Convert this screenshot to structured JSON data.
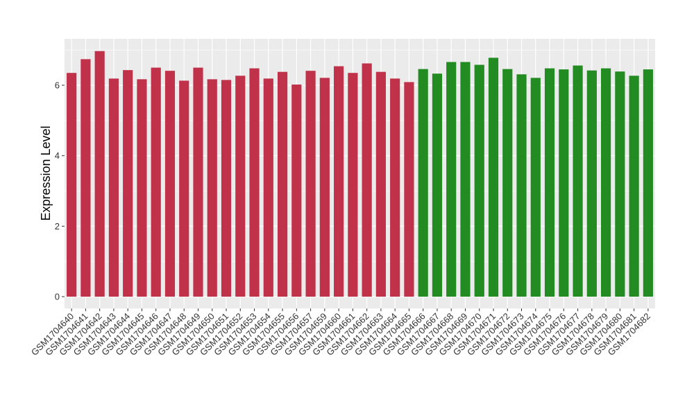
{
  "chart_data": {
    "type": "bar",
    "title": "",
    "xlabel": "",
    "ylabel": "Expression Level",
    "ylim": [
      0,
      7.2
    ],
    "yticks": [
      0,
      2,
      4,
      6
    ],
    "grid": true,
    "legend": "none",
    "colors": {
      "group1": "#C0314A",
      "group2": "#228B22",
      "panel": "#EBEBEB",
      "gridline": "#FFFFFF"
    },
    "categories": [
      "GSM1704640",
      "GSM1704641",
      "GSM1704642",
      "GSM1704643",
      "GSM1704644",
      "GSM1704645",
      "GSM1704646",
      "GSM1704647",
      "GSM1704648",
      "GSM1704649",
      "GSM1704650",
      "GSM1704651",
      "GSM1704652",
      "GSM1704653",
      "GSM1704654",
      "GSM1704655",
      "GSM1704656",
      "GSM1704657",
      "GSM1704659",
      "GSM1704660",
      "GSM1704661",
      "GSM1704662",
      "GSM1704663",
      "GSM1704664",
      "GSM1704665",
      "GSM1704666",
      "GSM1704667",
      "GSM1704668",
      "GSM1704669",
      "GSM1704670",
      "GSM1704671",
      "GSM1704672",
      "GSM1704673",
      "GSM1704674",
      "GSM1704675",
      "GSM1704676",
      "GSM1704677",
      "GSM1704678",
      "GSM1704679",
      "GSM1704680",
      "GSM1704681",
      "GSM1704682"
    ],
    "values": [
      6.35,
      6.74,
      6.97,
      6.19,
      6.43,
      6.17,
      6.5,
      6.41,
      6.13,
      6.5,
      6.17,
      6.15,
      6.27,
      6.48,
      6.19,
      6.38,
      6.02,
      6.41,
      6.21,
      6.54,
      6.35,
      6.62,
      6.38,
      6.19,
      6.09,
      6.46,
      6.33,
      6.66,
      6.66,
      6.58,
      6.78,
      6.46,
      6.31,
      6.21,
      6.48,
      6.45,
      6.56,
      6.42,
      6.48,
      6.39,
      6.27,
      6.45
    ],
    "groups": [
      1,
      1,
      1,
      1,
      1,
      1,
      1,
      1,
      1,
      1,
      1,
      1,
      1,
      1,
      1,
      1,
      1,
      1,
      1,
      1,
      1,
      1,
      1,
      1,
      1,
      2,
      2,
      2,
      2,
      2,
      2,
      2,
      2,
      2,
      2,
      2,
      2,
      2,
      2,
      2,
      2,
      2
    ]
  }
}
